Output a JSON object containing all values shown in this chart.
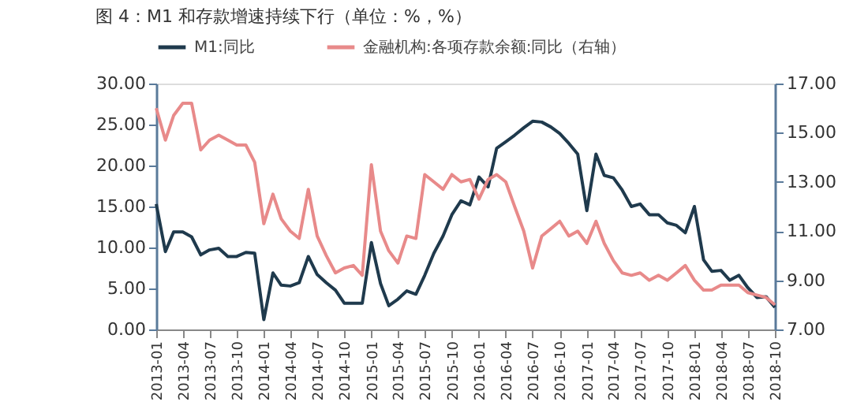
{
  "chart_data": {
    "type": "line",
    "title": "图 4：M1 和存款增速持续下行（单位：%，%）",
    "x": [
      "2013-01",
      "2013-02",
      "2013-03",
      "2013-04",
      "2013-05",
      "2013-06",
      "2013-07",
      "2013-08",
      "2013-09",
      "2013-10",
      "2013-11",
      "2013-12",
      "2014-01",
      "2014-02",
      "2014-03",
      "2014-04",
      "2014-05",
      "2014-06",
      "2014-07",
      "2014-08",
      "2014-09",
      "2014-10",
      "2014-11",
      "2014-12",
      "2015-01",
      "2015-02",
      "2015-03",
      "2015-04",
      "2015-05",
      "2015-06",
      "2015-07",
      "2015-08",
      "2015-09",
      "2015-10",
      "2015-11",
      "2015-12",
      "2016-01",
      "2016-02",
      "2016-03",
      "2016-04",
      "2016-05",
      "2016-06",
      "2016-07",
      "2016-08",
      "2016-09",
      "2016-10",
      "2016-11",
      "2016-12",
      "2017-01",
      "2017-02",
      "2017-03",
      "2017-04",
      "2017-05",
      "2017-06",
      "2017-07",
      "2017-08",
      "2017-09",
      "2017-10",
      "2017-11",
      "2017-12",
      "2018-01",
      "2018-02",
      "2018-03",
      "2018-04",
      "2018-05",
      "2018-06",
      "2018-07",
      "2018-08",
      "2018-09",
      "2018-10"
    ],
    "series": [
      {
        "name": "M1:同比",
        "color": "#1f3a4d",
        "values": [
          15.3,
          9.5,
          11.9,
          11.9,
          11.3,
          9.1,
          9.7,
          9.9,
          8.9,
          8.9,
          9.4,
          9.3,
          1.2,
          6.9,
          5.4,
          5.3,
          5.7,
          8.9,
          6.7,
          5.7,
          4.8,
          3.2,
          3.2,
          3.2,
          10.6,
          5.6,
          2.9,
          3.7,
          4.7,
          4.3,
          6.6,
          9.3,
          11.4,
          14.0,
          15.7,
          15.2,
          18.6,
          17.4,
          22.1,
          22.9,
          23.7,
          24.6,
          25.4,
          25.3,
          24.7,
          23.9,
          22.7,
          21.4,
          14.5,
          21.4,
          18.8,
          18.5,
          17.0,
          15.0,
          15.3,
          14.0,
          14.0,
          13.0,
          12.7,
          11.8,
          15.0,
          8.5,
          7.1,
          7.2,
          6.0,
          6.6,
          5.1,
          3.9,
          4.0,
          2.7
        ]
      },
      {
        "name": "金融机构:各项存款余额:同比（右轴）",
        "color": "#e88a8a",
        "axis": "y2",
        "values": [
          16.0,
          14.7,
          15.7,
          16.2,
          16.2,
          14.3,
          14.7,
          14.9,
          14.7,
          14.5,
          14.5,
          13.8,
          11.3,
          12.5,
          11.5,
          11.0,
          10.7,
          12.7,
          10.8,
          10.0,
          9.3,
          9.5,
          9.6,
          9.2,
          13.7,
          11.0,
          10.2,
          9.7,
          10.8,
          10.7,
          13.3,
          13.0,
          12.7,
          13.3,
          13.0,
          13.1,
          12.3,
          13.1,
          13.3,
          13.0,
          12.0,
          11.0,
          9.5,
          10.8,
          11.1,
          11.4,
          10.8,
          11.0,
          10.5,
          11.4,
          10.5,
          9.8,
          9.3,
          9.2,
          9.3,
          9.0,
          9.2,
          9.0,
          9.3,
          9.6,
          9.0,
          8.6,
          8.6,
          8.8,
          8.8,
          8.8,
          8.5,
          8.4,
          8.3,
          8.0
        ]
      }
    ],
    "xlim": [
      "2013-01",
      "2018-10"
    ],
    "xticks": [
      "2013-01",
      "2013-04",
      "2013-07",
      "2013-10",
      "2014-01",
      "2014-04",
      "2014-07",
      "2014-10",
      "2015-01",
      "2015-04",
      "2015-07",
      "2015-10",
      "2016-01",
      "2016-04",
      "2016-07",
      "2016-10",
      "2017-01",
      "2017-04",
      "2017-07",
      "2017-10",
      "2018-01",
      "2018-04",
      "2018-07",
      "2018-10"
    ],
    "ylim": [
      0,
      30
    ],
    "yticks": [
      {
        "value": 0,
        "label": "0.00"
      },
      {
        "value": 5,
        "label": "5.00"
      },
      {
        "value": 10,
        "label": "10.00"
      },
      {
        "value": 15,
        "label": "15.00"
      },
      {
        "value": 20,
        "label": "20.00"
      },
      {
        "value": 25,
        "label": "25.00"
      },
      {
        "value": 30,
        "label": "30.00"
      }
    ],
    "y2lim": [
      7,
      17
    ],
    "y2ticks": [
      {
        "value": 7,
        "label": "7.00"
      },
      {
        "value": 9,
        "label": "9.00"
      },
      {
        "value": 11,
        "label": "11.00"
      },
      {
        "value": 13,
        "label": "13.00"
      },
      {
        "value": 15,
        "label": "15.00"
      },
      {
        "value": 17,
        "label": "17.00"
      }
    ],
    "legend": "top",
    "grid": false,
    "marker": "none",
    "line_style": "solid"
  }
}
